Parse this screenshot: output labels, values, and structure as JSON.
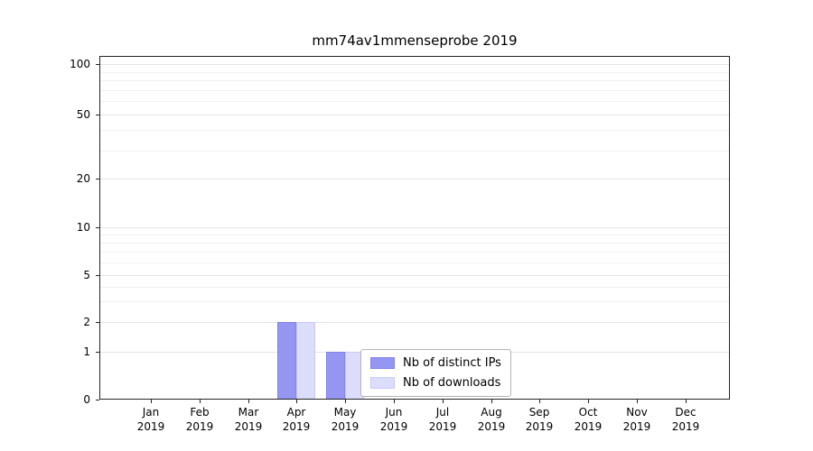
{
  "chart_data": {
    "type": "bar",
    "title": "mm74av1mmenseprobe 2019",
    "scale": "symlog",
    "grid": "horizontal",
    "y_ticks": [
      0,
      1,
      2,
      5,
      10,
      20,
      50,
      100
    ],
    "y_minor_gridlines": [
      3,
      4,
      6,
      7,
      8,
      9,
      30,
      40,
      60,
      70,
      80,
      90
    ],
    "x_ticks": [
      {
        "month": "Jan",
        "year": "2019"
      },
      {
        "month": "Feb",
        "year": "2019"
      },
      {
        "month": "Mar",
        "year": "2019"
      },
      {
        "month": "Apr",
        "year": "2019"
      },
      {
        "month": "May",
        "year": "2019"
      },
      {
        "month": "Jun",
        "year": "2019"
      },
      {
        "month": "Jul",
        "year": "2019"
      },
      {
        "month": "Aug",
        "year": "2019"
      },
      {
        "month": "Sep",
        "year": "2019"
      },
      {
        "month": "Oct",
        "year": "2019"
      },
      {
        "month": "Nov",
        "year": "2019"
      },
      {
        "month": "Dec",
        "year": "2019"
      }
    ],
    "series": [
      {
        "name": "Nb of distinct IPs",
        "color": "#9595f2",
        "edge_color": "#8282ec",
        "values": [
          0,
          0,
          0,
          2,
          1,
          0,
          0,
          0,
          0,
          0,
          0,
          0
        ]
      },
      {
        "name": "Nb of downloads",
        "color": "#dcdcfb",
        "edge_color": "#c9c9f7",
        "values": [
          0,
          0,
          0,
          2,
          1,
          0,
          0,
          0,
          0,
          0,
          0,
          0
        ]
      }
    ],
    "legend": {
      "position": "lower center"
    }
  }
}
